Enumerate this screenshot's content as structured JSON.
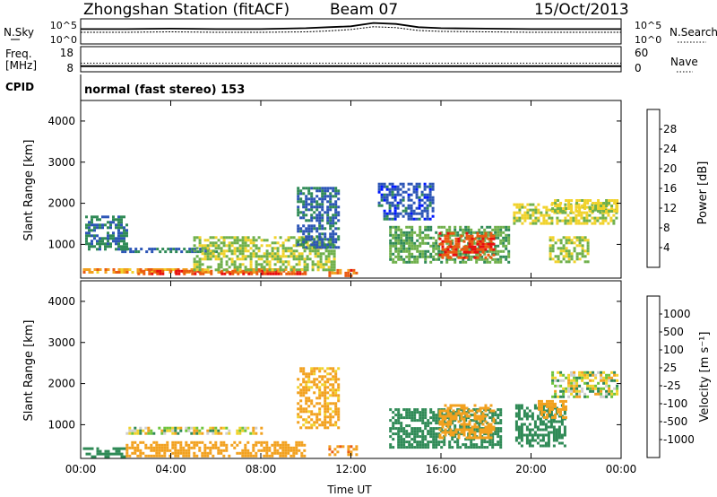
{
  "header": {
    "station": "Zhongshan Station (fitACF)",
    "beam": "Beam 07",
    "date": "15/Oct/2013"
  },
  "mode_text": "normal (fast stereo) 153",
  "labels": {
    "nsky": "N.Sky",
    "nsearch": "N.Search",
    "freq_line1": "Freq.",
    "freq_line2": "[MHz]",
    "nave": "Nave",
    "cpid": "CPID",
    "time_axis": "Time UT",
    "slant_range": "Slant Range [km]"
  },
  "colors": {
    "power": [
      "#0018ff",
      "#2c55b6",
      "#2f8a56",
      "#6fb04b",
      "#f1d22b",
      "#f2a11f",
      "#ea5a11",
      "#e80f0f"
    ],
    "velocity": [
      "#e80f0f",
      "#ea5a11",
      "#f2a11f",
      "#f1d22b",
      "#cfcfcf",
      "#6fc43c",
      "#2f8a56",
      "#2c55b6",
      "#1020c8"
    ]
  },
  "chart_data": [
    {
      "type": "line",
      "panel": "N.Sky / N.Search",
      "ylabel_left": "N.Sky",
      "ylabel_right": "N.Search",
      "y_ticks_left": [
        "10^5",
        "10^0"
      ],
      "y_ticks_right": [
        "10^5",
        "10^0"
      ],
      "xlim": [
        "00:00",
        "24:00"
      ],
      "series": [
        {
          "name": "N.Sky",
          "x_hours": [
            0,
            2,
            4,
            6,
            8,
            10,
            11,
            12,
            13,
            14,
            15,
            16,
            18,
            20,
            22,
            24
          ],
          "y": [
            3.0,
            3.0,
            3.1,
            3.0,
            3.0,
            3.2,
            3.4,
            3.6,
            4.3,
            4.1,
            3.4,
            3.2,
            3.1,
            3.0,
            3.0,
            3.0
          ]
        },
        {
          "name": "N.Search",
          "x_hours": [
            0,
            2,
            4,
            6,
            8,
            10,
            11,
            12,
            13,
            14,
            15,
            16,
            18,
            20,
            22,
            24
          ],
          "y": [
            2.3,
            2.3,
            2.4,
            2.3,
            2.3,
            2.4,
            2.6,
            2.9,
            3.5,
            3.3,
            2.7,
            2.5,
            2.4,
            2.3,
            2.3,
            2.3
          ]
        }
      ]
    },
    {
      "type": "line",
      "panel": "Freq. / Nave",
      "ylabel_left": "Freq. [MHz]",
      "ylabel_right": "Nave",
      "y_ticks_left": [
        "18",
        "8"
      ],
      "y_ticks_right": [
        "60",
        "0"
      ],
      "series": [
        {
          "name": "Freq.",
          "y": 10
        },
        {
          "name": "Nave",
          "y": 20
        }
      ]
    },
    {
      "type": "heatmap",
      "title": "",
      "ylabel": "Slant Range [km]",
      "yticks": [
        1000,
        2000,
        3000,
        4000
      ],
      "ylim": [
        180,
        4500
      ],
      "xlabel": "",
      "xticks": [
        "00:00",
        "04:00",
        "08:00",
        "12:00",
        "16:00",
        "20:00",
        "00:00"
      ],
      "colorbar": {
        "label": "Power [dB]",
        "ticks": [
          4,
          8,
          12,
          16,
          20,
          24,
          28
        ]
      },
      "regions": [
        {
          "t": [
            0.1,
            10.0
          ],
          "r": [
            300,
            420
          ],
          "v": 22
        },
        {
          "t": [
            2.4,
            10.0
          ],
          "r": [
            280,
            380
          ],
          "v": 27
        },
        {
          "t": [
            11.0,
            12.3
          ],
          "r": [
            260,
            400
          ],
          "v": 26
        },
        {
          "t": [
            1.8,
            6.0
          ],
          "r": [
            820,
            920
          ],
          "v": 7
        },
        {
          "t": [
            0.2,
            2.0
          ],
          "r": [
            900,
            1700
          ],
          "v": 9
        },
        {
          "t": [
            5.0,
            11.3
          ],
          "r": [
            400,
            1200
          ],
          "v": 15
        },
        {
          "t": [
            9.6,
            11.4
          ],
          "r": [
            900,
            2400
          ],
          "v": 7
        },
        {
          "t": [
            13.7,
            19.0
          ],
          "r": [
            550,
            1450
          ],
          "v": 13
        },
        {
          "t": [
            15.9,
            18.4
          ],
          "r": [
            700,
            1300
          ],
          "v": 27
        },
        {
          "t": [
            13.2,
            15.6
          ],
          "r": [
            1600,
            2500
          ],
          "v": 6
        },
        {
          "t": [
            19.2,
            23.8
          ],
          "r": [
            1500,
            2000
          ],
          "v": 17
        },
        {
          "t": [
            20.9,
            23.8
          ],
          "r": [
            1800,
            2100
          ],
          "v": 17
        },
        {
          "t": [
            20.8,
            22.5
          ],
          "r": [
            600,
            1200
          ],
          "v": 16
        }
      ]
    },
    {
      "type": "heatmap",
      "title": "",
      "ylabel": "Slant Range [km]",
      "yticks": [
        1000,
        2000,
        3000,
        4000
      ],
      "ylim": [
        180,
        4500
      ],
      "xlabel": "Time UT",
      "xticks": [
        "00:00",
        "04:00",
        "08:00",
        "12:00",
        "16:00",
        "20:00",
        "00:00"
      ],
      "colorbar": {
        "label": "Velocity [m s⁻¹]",
        "ticks": [
          1000,
          500,
          100,
          25,
          -25,
          -100,
          -500,
          -1000
        ]
      },
      "regions": [
        {
          "t": [
            0.1,
            2.0
          ],
          "r": [
            250,
            450
          ],
          "v": 250
        },
        {
          "t": [
            2.0,
            10.0
          ],
          "r": [
            250,
            600
          ],
          "v": -300
        },
        {
          "t": [
            11.0,
            12.3
          ],
          "r": [
            260,
            500
          ],
          "v": -400
        },
        {
          "t": [
            2.0,
            8.0
          ],
          "r": [
            800,
            950
          ],
          "v": 0
        },
        {
          "t": [
            9.6,
            11.4
          ],
          "r": [
            900,
            2400
          ],
          "v": -200
        },
        {
          "t": [
            13.7,
            18.6
          ],
          "r": [
            450,
            1400
          ],
          "v": 300
        },
        {
          "t": [
            15.9,
            18.4
          ],
          "r": [
            700,
            1500
          ],
          "v": -250
        },
        {
          "t": [
            20.9,
            23.8
          ],
          "r": [
            1700,
            2300
          ],
          "v": 0
        },
        {
          "t": [
            19.3,
            21.5
          ],
          "r": [
            500,
            1500
          ],
          "v": 300
        },
        {
          "t": [
            20.3,
            21.5
          ],
          "r": [
            1200,
            1600
          ],
          "v": -300
        }
      ]
    }
  ]
}
